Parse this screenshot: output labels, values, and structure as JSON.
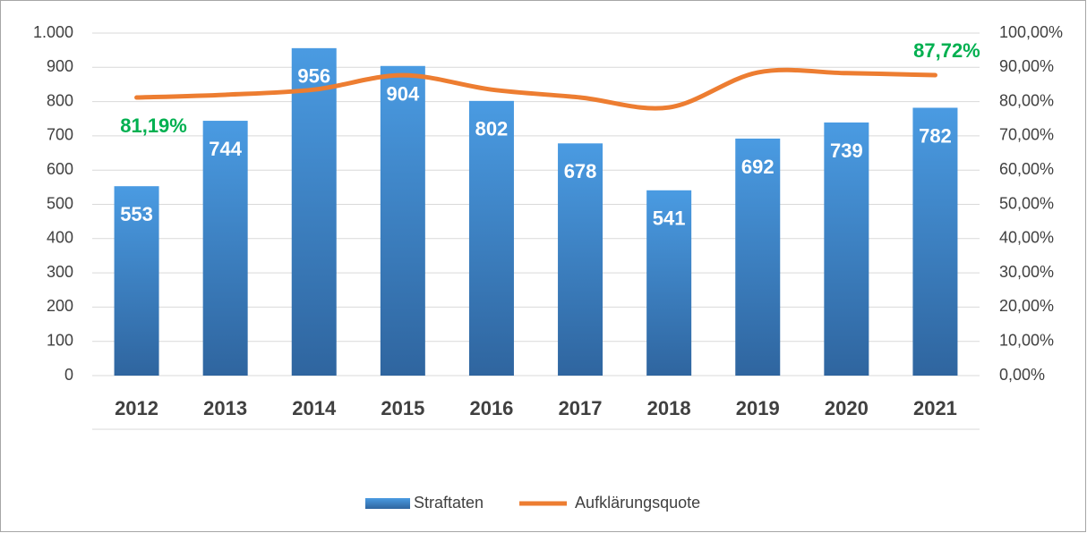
{
  "chart_data": {
    "type": "bar",
    "categories": [
      "2012",
      "2013",
      "2014",
      "2015",
      "2016",
      "2017",
      "2018",
      "2019",
      "2020",
      "2021"
    ],
    "series": [
      {
        "name": "Straftaten",
        "type": "bar",
        "color": "#4a9be2",
        "values": [
          553,
          744,
          956,
          904,
          802,
          678,
          541,
          692,
          739,
          782
        ]
      },
      {
        "name": "Aufklärungsquote",
        "type": "line",
        "axis": "y2",
        "color": "#ed7d31",
        "label_color": "#00b050",
        "values": [
          81.19,
          82.0,
          83.5,
          87.7,
          83.5,
          81.2,
          78.3,
          88.5,
          88.3,
          87.72
        ],
        "value_labels": [
          "81,19%",
          null,
          null,
          null,
          null,
          null,
          null,
          null,
          null,
          "87,72%"
        ]
      }
    ],
    "ylim": [
      0,
      1000
    ],
    "yticks": [
      0,
      100,
      200,
      300,
      400,
      500,
      600,
      700,
      800,
      900,
      {
        "value": 1000,
        "label": "1.000"
      }
    ],
    "y2lim": [
      0,
      100
    ],
    "y2ticks": [
      {
        "value": 0,
        "label": "0,00%"
      },
      {
        "value": 10,
        "label": "10,00%"
      },
      {
        "value": 20,
        "label": "20,00%"
      },
      {
        "value": 30,
        "label": "30,00%"
      },
      {
        "value": 40,
        "label": "40,00%"
      },
      {
        "value": 50,
        "label": "50,00%"
      },
      {
        "value": 60,
        "label": "60,00%"
      },
      {
        "value": 70,
        "label": "70,00%"
      },
      {
        "value": 80,
        "label": "80,00%"
      },
      {
        "value": 90,
        "label": "90,00%"
      },
      {
        "value": 100,
        "label": "100,00%"
      }
    ],
    "grid": true,
    "legend": "bottom"
  }
}
